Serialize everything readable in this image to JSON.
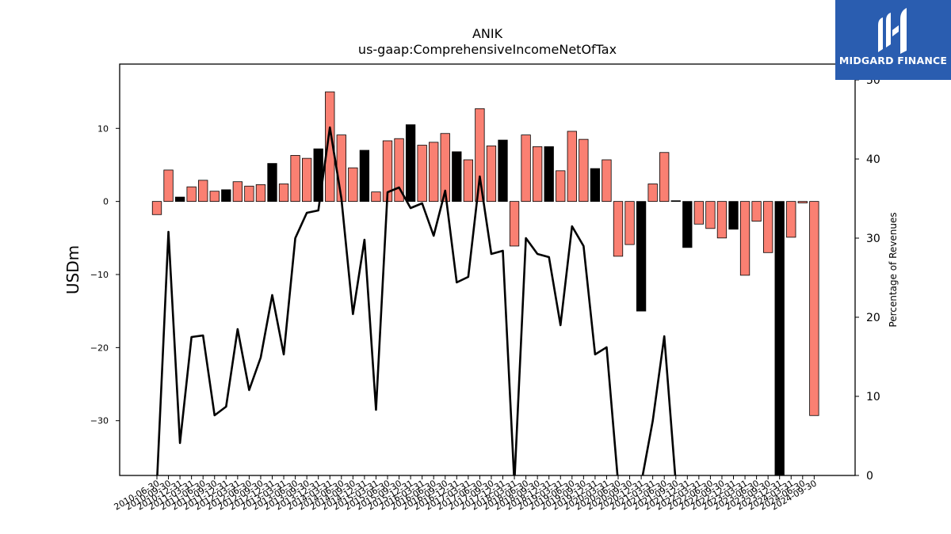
{
  "brand": {
    "name": "MIDGARD FINANCE",
    "bg_color": "#2a5db0"
  },
  "chart_data": {
    "type": "bar",
    "title": "ANIK",
    "subtitle": "us-gaap:ComprehensiveIncomeNetOfTax",
    "ylabel": "USDm",
    "y2label": "Percentage of Revenues",
    "ylim": [
      -37.5,
      18.8
    ],
    "y2lim": [
      0,
      52
    ],
    "yticks": [
      -30,
      -20,
      -10,
      0,
      10
    ],
    "y2ticks": [
      0,
      10,
      20,
      30,
      40,
      50
    ],
    "colors": {
      "positive_default": "#fa8072",
      "highlight": "#000000",
      "line": "#000000"
    },
    "x": [
      "2010-06-30",
      "2010-09-30",
      "2010-12-31",
      "2011-03-31",
      "2011-06-30",
      "2011-09-30",
      "2011-12-31",
      "2012-03-31",
      "2012-06-30",
      "2012-09-30",
      "2012-12-31",
      "2013-03-31",
      "2013-06-30",
      "2013-09-30",
      "2013-12-31",
      "2014-03-31",
      "2014-06-30",
      "2014-09-30",
      "2014-12-31",
      "2015-03-31",
      "2015-06-30",
      "2015-09-30",
      "2015-12-31",
      "2016-03-31",
      "2016-06-30",
      "2016-09-30",
      "2016-12-31",
      "2017-03-31",
      "2017-06-30",
      "2017-09-30",
      "2017-12-31",
      "2018-03-31",
      "2018-06-30",
      "2018-09-30",
      "2018-12-31",
      "2019-03-31",
      "2019-06-30",
      "2019-09-30",
      "2019-12-31",
      "2020-03-31",
      "2020-06-30",
      "2020-09-30",
      "2020-12-31",
      "2021-03-31",
      "2021-06-30",
      "2021-09-30",
      "2021-12-31",
      "2022-03-31",
      "2022-06-30",
      "2022-09-30",
      "2022-12-31",
      "2023-03-31",
      "2023-06-30",
      "2023-09-30",
      "2023-12-31",
      "2024-03-31",
      "2024-06-30",
      "2024-09-30"
    ],
    "xtick_labels": [
      "2010-06-30",
      "2010-09-30",
      "2010-12-31",
      "2011-03-31",
      "2011-06-30",
      "2011-09-30",
      "2011-12-31",
      "2012-03-31",
      "2012-06-30",
      "2012-09-30",
      "2012-12-31",
      "2013-03-31",
      "2013-06-30",
      "2013-09-30",
      "2013-12-31",
      "2014-03-31",
      "2014-06-30",
      "2014-09-30",
      "2014-12-31",
      "2015-03-31",
      "2015-06-30",
      "2015-09-30",
      "2015-12-31",
      "2016-03-31",
      "2016-06-30",
      "2016-09-30",
      "2016-12-31",
      "2017-03-31",
      "2017-06-30",
      "2017-09-30",
      "2017-12-31",
      "2018-03-31",
      "2018-06-30",
      "2018-09-30",
      "2018-12-31",
      "2019-03-31",
      "2019-06-30",
      "2019-09-30",
      "2019-12-31",
      "2020-03-31",
      "2020-06-30",
      "2020-09-30",
      "2020-12-31",
      "2021-03-31",
      "2021-06-30",
      "2021-09-30",
      "2021-12-31",
      "2022-03-31",
      "2022-06-30",
      "2022-09-30",
      "2022-12-31",
      "2023-03-31",
      "2023-06-30",
      "2023-09-30",
      "2023-12-31",
      "2024-03-31",
      "2024-06-30",
      "2024-09-30"
    ],
    "values": [
      -1.8,
      4.3,
      0.6,
      2.0,
      2.9,
      1.4,
      1.6,
      2.7,
      2.1,
      2.3,
      5.2,
      2.4,
      6.3,
      5.9,
      7.2,
      15.0,
      9.1,
      4.6,
      7.0,
      1.3,
      8.3,
      8.6,
      10.5,
      7.7,
      8.1,
      9.3,
      6.8,
      5.7,
      12.7,
      7.6,
      8.4,
      -6.1,
      9.1,
      7.5,
      7.5,
      4.2,
      9.6,
      8.5,
      4.5,
      5.7,
      -7.5,
      -5.9,
      -15.0,
      2.4,
      6.7,
      0.1,
      -6.3,
      -3.1,
      -3.7,
      -5.0,
      -3.8,
      -10.1,
      -2.7,
      -7.0,
      -37.5,
      -4.9,
      -0.2,
      -29.3
    ],
    "highlight": [
      false,
      false,
      true,
      false,
      false,
      false,
      true,
      false,
      false,
      false,
      true,
      false,
      false,
      false,
      true,
      false,
      false,
      false,
      true,
      false,
      false,
      false,
      true,
      false,
      false,
      false,
      true,
      false,
      false,
      false,
      true,
      false,
      false,
      false,
      true,
      false,
      false,
      false,
      true,
      false,
      false,
      false,
      true,
      false,
      false,
      true,
      true,
      false,
      false,
      false,
      true,
      false,
      false,
      false,
      true,
      false,
      false,
      false
    ],
    "line_values": [
      -1.0,
      30.8,
      4.1,
      17.5,
      17.7,
      7.6,
      8.7,
      18.5,
      10.8,
      14.9,
      22.8,
      15.3,
      30.0,
      33.2,
      33.5,
      44.0,
      35.0,
      20.4,
      29.8,
      8.3,
      35.8,
      36.4,
      33.8,
      34.4,
      30.3,
      36.0,
      24.4,
      25.1,
      37.8,
      28.0,
      28.4,
      -1.0,
      30.0,
      28.0,
      27.6,
      19.0,
      31.5,
      29.0,
      15.3,
      16.2,
      -1.0,
      -1.0,
      -1.0,
      6.9,
      17.6,
      -1.0,
      -1.0,
      -1.0,
      -1.0,
      -1.0,
      -1.0,
      -1.0,
      -1.0,
      -1.0,
      -1.0,
      -1.0,
      -1.0,
      -1.0
    ]
  }
}
